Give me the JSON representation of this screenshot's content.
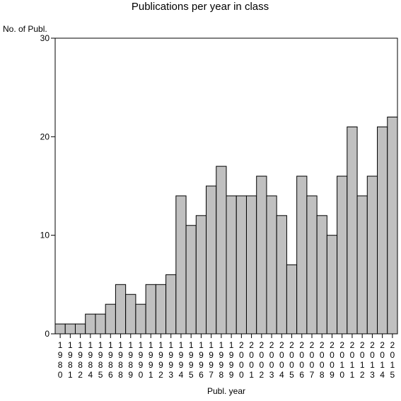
{
  "chart_data": {
    "type": "bar",
    "title": "Publications per year in class",
    "xlabel": "Publ. year",
    "ylabel": "No. of Publ.",
    "ylim": [
      0,
      30
    ],
    "yticks": [
      "0",
      "10",
      "20",
      "30"
    ],
    "grid": false,
    "colors": {
      "bar_fill": "#c0c0c0",
      "bar_stroke": "#000000"
    },
    "categories": [
      "1980",
      "1981",
      "1982",
      "1984",
      "1985",
      "1986",
      "1988",
      "1989",
      "1990",
      "1991",
      "1992",
      "1993",
      "1994",
      "1995",
      "1996",
      "1997",
      "1998",
      "1999",
      "2000",
      "2001",
      "2002",
      "2003",
      "2004",
      "2005",
      "2006",
      "2007",
      "2008",
      "2009",
      "2010",
      "2011",
      "2012",
      "2013",
      "2014",
      "2015"
    ],
    "values": [
      1,
      1,
      1,
      2,
      2,
      3,
      5,
      4,
      3,
      5,
      5,
      6,
      14,
      11,
      12,
      15,
      17,
      14,
      14,
      14,
      16,
      14,
      12,
      7,
      16,
      14,
      12,
      10,
      16,
      21,
      14,
      16,
      21,
      22
    ]
  }
}
